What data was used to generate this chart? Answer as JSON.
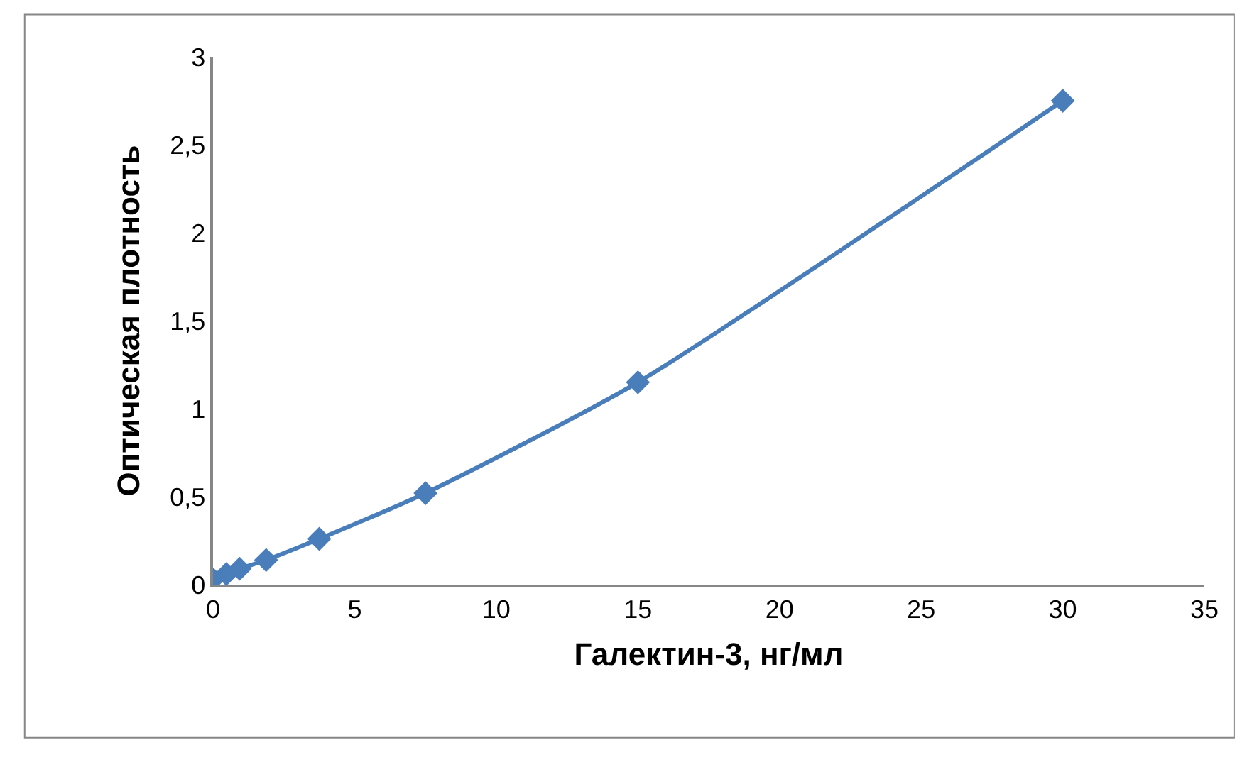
{
  "chart_data": {
    "type": "line",
    "xlabel": "Галектин-3, нг/мл",
    "ylabel": "Оптическая плотность",
    "x": [
      0,
      0.47,
      0.94,
      1.875,
      3.75,
      7.5,
      15,
      30
    ],
    "series": [
      {
        "color": "#4a7ebb",
        "values": [
          0.03,
          0.06,
          0.09,
          0.14,
          0.26,
          0.52,
          1.15,
          2.75
        ]
      }
    ],
    "xlim": [
      0,
      35
    ],
    "xticks": [
      0,
      5,
      10,
      15,
      20,
      25,
      30,
      35
    ],
    "ylim": [
      0,
      3
    ],
    "yticks": [
      0,
      {
        "value": 0.5,
        "label": "0,5"
      },
      1,
      {
        "value": 1.5,
        "label": "1,5"
      },
      2,
      {
        "value": 2.5,
        "label": "2,5"
      },
      3
    ],
    "legend": false,
    "marker": "diamond",
    "line_style": "solid"
  }
}
